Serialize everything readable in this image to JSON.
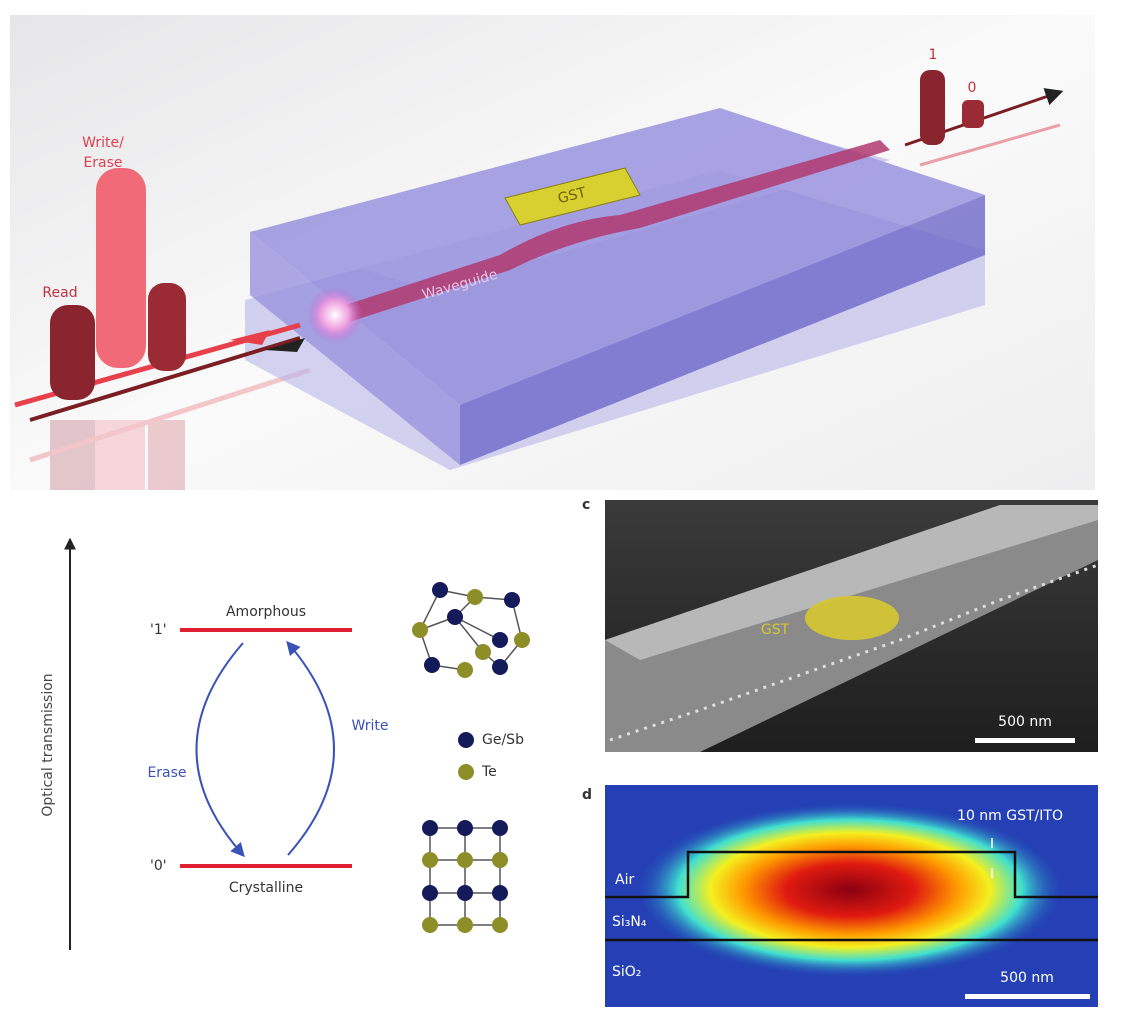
{
  "panel_a": {
    "write_erase": [
      "Write/",
      "Erase"
    ],
    "read": "Read",
    "gst": "GST",
    "waveguide": "Waveguide",
    "out_1": "1",
    "out_0": "0"
  },
  "panel_b": {
    "axis": "Optical transmission",
    "level_1": "'1'",
    "level_0": "'0'",
    "amorphous": "Amorphous",
    "crystalline": "Crystalline",
    "erase": "Erase",
    "write": "Write",
    "legend_gesb": "Ge/Sb",
    "legend_te": "Te"
  },
  "panel_c": {
    "label": "c",
    "gst": "GST",
    "scale": "500 nm"
  },
  "panel_d": {
    "label": "d",
    "film": "10 nm GST/ITO",
    "air": "Air",
    "si3n4": "Si₃N₄",
    "sio2": "SiO₂",
    "scale": "500 nm"
  }
}
